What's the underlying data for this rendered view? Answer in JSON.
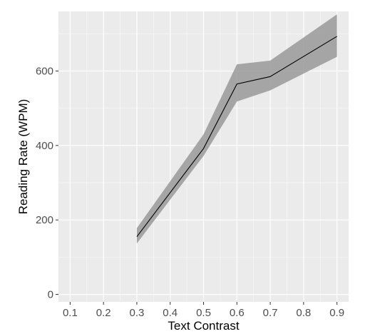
{
  "chart_data": {
    "type": "line",
    "xlabel": "Text Contrast",
    "ylabel": "Reading Rate (WPM)",
    "xlim": [
      0.065,
      0.935
    ],
    "ylim": [
      -20,
      760
    ],
    "x_ticks": [
      0.1,
      0.2,
      0.3,
      0.4,
      0.5,
      0.6,
      0.7,
      0.8,
      0.9
    ],
    "x_tick_labels": [
      "0.1",
      "0.2",
      "0.3",
      "0.4",
      "0.5",
      "0.6",
      "0.7",
      "0.8",
      "0.9"
    ],
    "y_ticks": [
      0,
      200,
      400,
      600
    ],
    "y_tick_labels": [
      "0",
      "200",
      "400",
      "600"
    ],
    "grid": true,
    "series": [
      {
        "x": [
          0.3,
          0.5,
          0.6,
          0.7,
          0.9
        ],
        "y": [
          155,
          392,
          565,
          585,
          693
        ],
        "lower": [
          137,
          372,
          518,
          548,
          638
        ],
        "upper": [
          178,
          430,
          618,
          628,
          752
        ]
      }
    ],
    "colors": {
      "panel": "#ebebeb",
      "grid_major": "#ffffff",
      "line": "#000000",
      "band": "#999999"
    }
  }
}
